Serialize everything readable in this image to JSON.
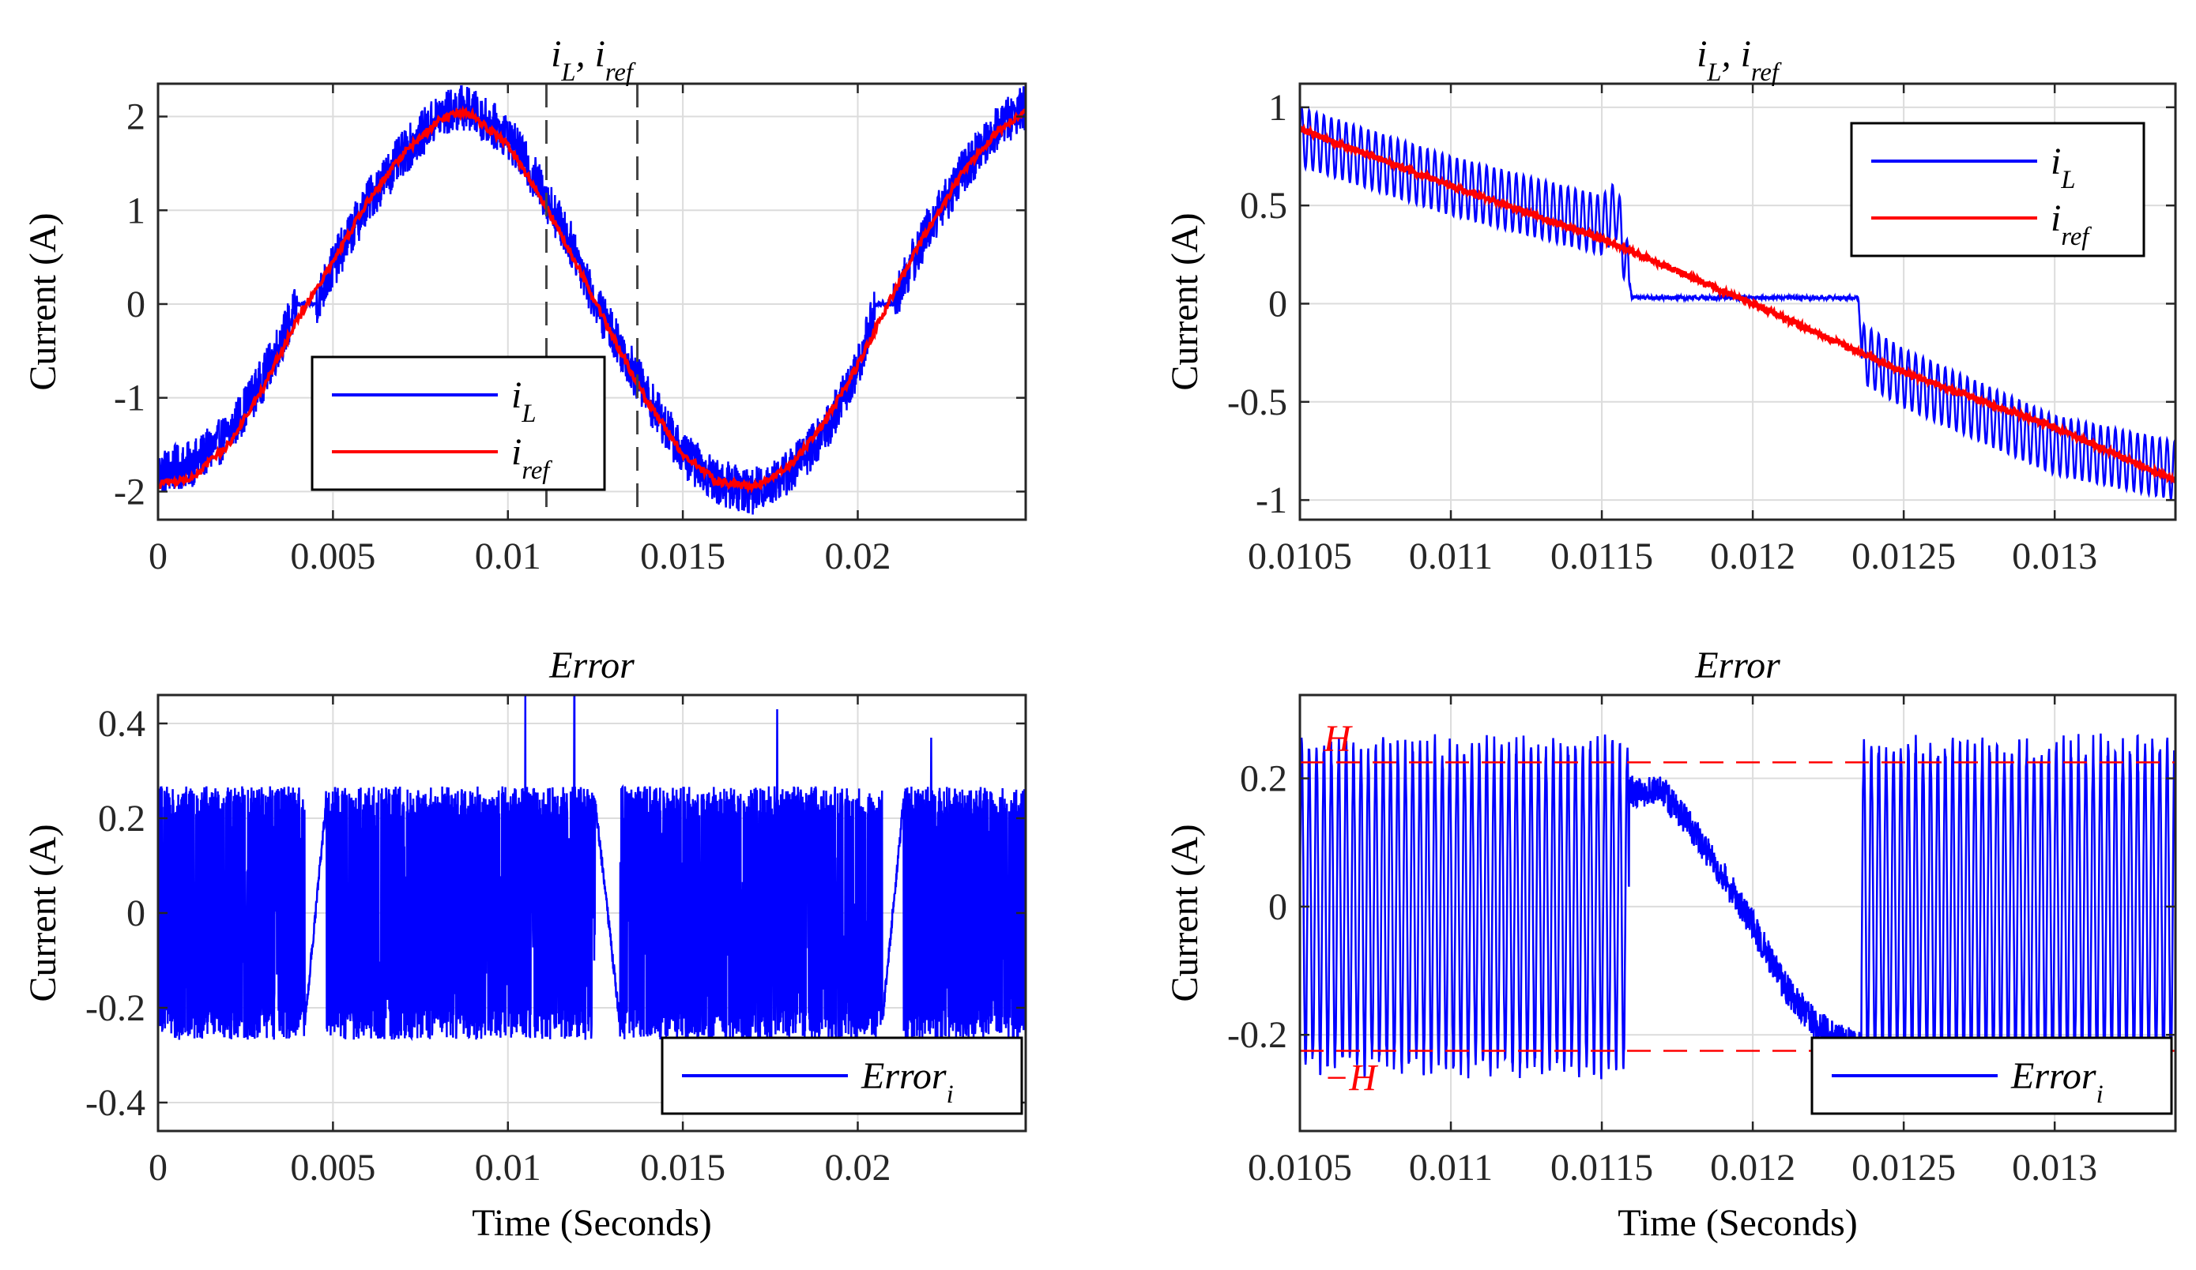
{
  "figure": {
    "panels": [
      "top-left",
      "top-right",
      "bottom-left",
      "bottom-right"
    ]
  },
  "chart_data": [
    {
      "id": "top-left",
      "type": "line",
      "title": "iL, iref",
      "title_parts": [
        {
          "text": "i",
          "sub": "L"
        },
        {
          "text": ", "
        },
        {
          "text": "i",
          "sub": "ref"
        }
      ],
      "xlabel": "",
      "ylabel": "Current (A)",
      "xlim": [
        0,
        0.0248
      ],
      "ylim": [
        -2.3,
        2.35
      ],
      "xticks": [
        0,
        0.005,
        0.01,
        0.015,
        0.02
      ],
      "xtick_labels": [
        "0",
        "0.005",
        "0.01",
        "0.015",
        "0.02"
      ],
      "yticks": [
        -2,
        -1,
        0,
        1,
        2
      ],
      "ytick_labels": [
        "-2",
        "-1",
        "0",
        "1",
        "2"
      ],
      "grid": true,
      "legend_position": "bottom-center",
      "legend": [
        {
          "label": "i",
          "sub": "L",
          "color": "#0000ff"
        },
        {
          "label": "i",
          "sub": "ref",
          "color": "#ff0000"
        }
      ],
      "vlines": [
        {
          "x": 0.0111,
          "color": "#444444",
          "style": "dashed"
        },
        {
          "x": 0.0137,
          "color": "#444444",
          "style": "dashed"
        }
      ],
      "series": [
        {
          "name": "iL",
          "color": "#0000ff",
          "noise_amplitude": 0.25,
          "x": [
            0,
            0.001,
            0.002,
            0.003,
            0.004,
            0.0045,
            0.005,
            0.006,
            0.007,
            0.008,
            0.0087,
            0.009,
            0.01,
            0.011,
            0.012,
            0.0125,
            0.013,
            0.014,
            0.015,
            0.016,
            0.017,
            0.018,
            0.019,
            0.02,
            0.0205,
            0.021,
            0.022,
            0.023,
            0.024,
            0.0248
          ],
          "y": [
            -1.8,
            -1.7,
            -1.4,
            -0.8,
            0.0,
            0.0,
            0.4,
            1.1,
            1.6,
            2.0,
            2.1,
            2.05,
            1.8,
            1.2,
            0.5,
            0.0,
            -0.3,
            -1.0,
            -1.6,
            -1.9,
            -2.0,
            -1.8,
            -1.4,
            -0.7,
            0.0,
            0.0,
            0.8,
            1.4,
            1.9,
            2.1
          ]
        },
        {
          "name": "iref",
          "color": "#ff0000",
          "noise_amplitude": 0.04,
          "x": [
            0,
            0.001,
            0.002,
            0.003,
            0.004,
            0.005,
            0.006,
            0.007,
            0.008,
            0.0087,
            0.009,
            0.01,
            0.011,
            0.012,
            0.013,
            0.014,
            0.015,
            0.016,
            0.017,
            0.018,
            0.019,
            0.02,
            0.021,
            0.022,
            0.023,
            0.024,
            0.0248
          ],
          "y": [
            -1.92,
            -1.85,
            -1.5,
            -0.9,
            -0.15,
            0.45,
            1.1,
            1.6,
            1.95,
            2.05,
            2.0,
            1.7,
            1.1,
            0.4,
            -0.35,
            -1.05,
            -1.6,
            -1.9,
            -1.95,
            -1.75,
            -1.3,
            -0.65,
            0.1,
            0.8,
            1.4,
            1.85,
            2.05
          ]
        }
      ]
    },
    {
      "id": "top-right",
      "type": "line",
      "title": "iL, iref",
      "title_parts": [
        {
          "text": "i",
          "sub": "L"
        },
        {
          "text": ", "
        },
        {
          "text": "i",
          "sub": "ref"
        }
      ],
      "xlabel": "",
      "ylabel": "Current (A)",
      "xlim": [
        0.0105,
        0.0134
      ],
      "ylim": [
        -1.1,
        1.12
      ],
      "xticks": [
        0.0105,
        0.011,
        0.0115,
        0.012,
        0.0125,
        0.013
      ],
      "xtick_labels": [
        "0.0105",
        "0.011",
        "0.0115",
        "0.012",
        "0.0125",
        "0.013"
      ],
      "yticks": [
        -1,
        -0.5,
        0,
        0.5,
        1
      ],
      "ytick_labels": [
        "-1",
        "-0.5",
        "0",
        "0.5",
        "1"
      ],
      "grid": true,
      "legend_position": "top-right",
      "legend": [
        {
          "label": "i",
          "sub": "L",
          "color": "#0000ff"
        },
        {
          "label": "i",
          "sub": "ref",
          "color": "#ff0000"
        }
      ],
      "series": [
        {
          "name": "iL",
          "color": "#0000ff",
          "ripple_amplitude": 0.15,
          "ripple_period": 2.45e-05,
          "x": [
            0.0105,
            0.011,
            0.0115,
            0.01155,
            0.0116,
            0.01165,
            0.012,
            0.0122,
            0.01235,
            0.01236,
            0.0125,
            0.013,
            0.0134
          ],
          "y": [
            0.85,
            0.6,
            0.4,
            0.48,
            0.03,
            0.03,
            0.03,
            0.03,
            0.03,
            -0.25,
            -0.38,
            -0.72,
            -0.85
          ]
        },
        {
          "name": "iref",
          "color": "#ff0000",
          "noise_amplitude": 0.015,
          "x": [
            0.0105,
            0.011,
            0.0115,
            0.012,
            0.0125,
            0.013,
            0.0134
          ],
          "y": [
            0.89,
            0.6,
            0.33,
            0.0,
            -0.35,
            -0.63,
            -0.9
          ]
        }
      ]
    },
    {
      "id": "bottom-left",
      "type": "line",
      "title": "Error",
      "xlabel": "Time (Seconds)",
      "ylabel": "Current (A)",
      "xlim": [
        0,
        0.0248
      ],
      "ylim": [
        -0.46,
        0.46
      ],
      "xticks": [
        0,
        0.005,
        0.01,
        0.015,
        0.02
      ],
      "xtick_labels": [
        "0",
        "0.005",
        "0.01",
        "0.015",
        "0.02"
      ],
      "yticks": [
        -0.4,
        -0.2,
        0,
        0.2,
        0.4
      ],
      "ytick_labels": [
        "-0.4",
        "-0.2",
        "0",
        "0.2",
        "0.4"
      ],
      "grid": true,
      "legend_position": "bottom-right",
      "legend": [
        {
          "label": "Error",
          "sub": "i",
          "color": "#0000ff"
        }
      ],
      "band": {
        "low": -0.25,
        "high": 0.25
      },
      "ramps": [
        {
          "x0": 0.0042,
          "x1": 0.0048,
          "y0": -0.23,
          "y1": 0.23
        },
        {
          "x0": 0.0125,
          "x1": 0.0132,
          "y0": 0.23,
          "y1": -0.23
        },
        {
          "x0": 0.0207,
          "x1": 0.0213,
          "y0": -0.23,
          "y1": 0.23
        }
      ],
      "spikes": [
        {
          "x": 0.0105,
          "y": 0.46
        },
        {
          "x": 0.0119,
          "y": 0.46
        },
        {
          "x": 0.0177,
          "y": 0.43
        },
        {
          "x": 0.0221,
          "y": 0.37
        }
      ],
      "series": [
        {
          "name": "Errori",
          "color": "#0000ff"
        }
      ]
    },
    {
      "id": "bottom-right",
      "type": "line",
      "title": "Error",
      "xlabel": "Time (Seconds)",
      "ylabel": "Current (A)",
      "xlim": [
        0.0105,
        0.0134
      ],
      "ylim": [
        -0.35,
        0.33
      ],
      "xticks": [
        0.0105,
        0.011,
        0.0115,
        0.012,
        0.0125,
        0.013
      ],
      "xtick_labels": [
        "0.0105",
        "0.011",
        "0.0115",
        "0.012",
        "0.0125",
        "0.013"
      ],
      "yticks": [
        -0.2,
        0,
        0.2
      ],
      "ytick_labels": [
        "-0.2",
        "0",
        "0.2"
      ],
      "grid": true,
      "legend_position": "bottom-right",
      "legend": [
        {
          "label": "Error",
          "sub": "i",
          "color": "#0000ff"
        }
      ],
      "hlines": [
        {
          "y": 0.225,
          "color": "#ff0000",
          "style": "dashed",
          "label": "H"
        },
        {
          "y": -0.225,
          "color": "#ff0000",
          "style": "dashed",
          "label": "−H"
        }
      ],
      "oscillation": {
        "amplitude": 0.24,
        "period": 2.45e-05
      },
      "quiet_segment": {
        "x": [
          0.01159,
          0.0117,
          0.0118,
          0.0119,
          0.012,
          0.0121,
          0.0122,
          0.0123,
          0.01236
        ],
        "y": [
          0.18,
          0.18,
          0.12,
          0.05,
          -0.03,
          -0.12,
          -0.18,
          -0.21,
          -0.22
        ]
      },
      "series": [
        {
          "name": "Errori",
          "color": "#0000ff"
        }
      ]
    }
  ]
}
